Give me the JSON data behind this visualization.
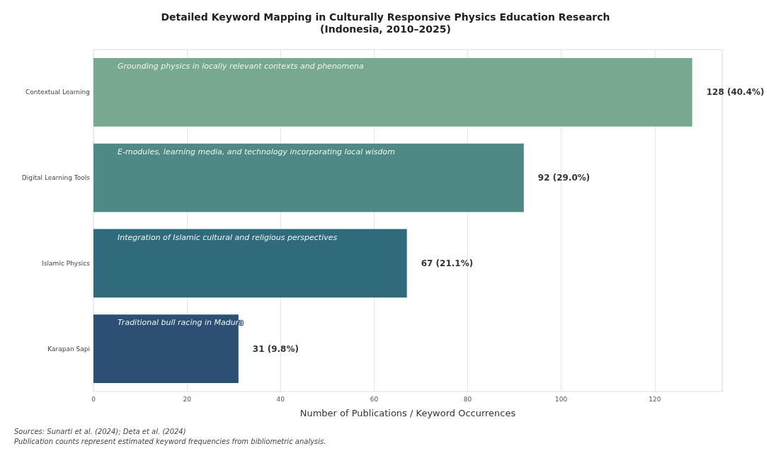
{
  "chart_data": {
    "type": "bar",
    "orientation": "horizontal",
    "title": "Detailed Keyword Mapping in Culturally Responsive Physics Education Research\n(Indonesia, 2010–2025)",
    "xlabel": "Number of Publications / Keyword Occurrences",
    "categories": [
      "Contextual Learning",
      "Digital Learning Tools",
      "Islamic Physics",
      "Karapan Sapi"
    ],
    "values": [
      128,
      92,
      67,
      31
    ],
    "colors": [
      "#78a88f",
      "#4f8985",
      "#306b7b",
      "#2c4f73"
    ],
    "value_labels": [
      "128 (40.4%)",
      "92 (29.0%)",
      "67 (21.1%)",
      "31 (9.8%)"
    ],
    "xlim": [
      0,
      134.4
    ],
    "xticks": [
      0,
      20,
      40,
      60,
      80,
      100,
      120
    ],
    "grid": "x",
    "annotations": [
      "Grounding physics in locally relevant contexts and phenomena",
      "E-modules, learning media, and technology incorporating local wisdom",
      "Integration of Islamic cultural and religious perspectives",
      "Traditional bull racing in Madura",
      "Sources: Sunarti et al. (2024); Deta et al. (2024)",
      "Publication counts represent estimated keyword frequencies from bibliometric analysis."
    ]
  }
}
